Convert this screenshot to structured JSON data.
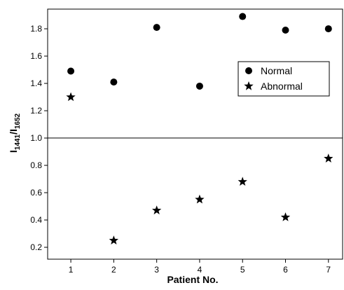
{
  "chart_data": {
    "type": "scatter",
    "x": [
      1,
      2,
      3,
      4,
      5,
      6,
      7
    ],
    "series": [
      {
        "name": "Normal",
        "color": "#000000",
        "marker": "circle",
        "values": [
          1.49,
          1.41,
          1.81,
          1.38,
          1.89,
          1.79,
          1.8
        ]
      },
      {
        "name": "Abnormal",
        "color": "#000000",
        "marker": "star",
        "values": [
          1.3,
          0.25,
          0.47,
          0.55,
          0.68,
          0.42,
          0.85
        ]
      }
    ],
    "x_label": "Patient No.",
    "y_label": [
      "I",
      "1441",
      "/I",
      "1652"
    ],
    "xlim": [
      0.46,
      7.33
    ],
    "ylim": [
      0.113,
      1.944
    ],
    "xticks": [
      1,
      2,
      3,
      4,
      5,
      6,
      7
    ],
    "yticks": [
      0.2,
      0.4,
      0.6,
      0.8,
      {
        "value": 1.0,
        "label": "1.0"
      },
      1.2,
      1.4,
      1.6,
      1.8
    ],
    "hline": 1.0,
    "legend": "right",
    "grid": false
  }
}
